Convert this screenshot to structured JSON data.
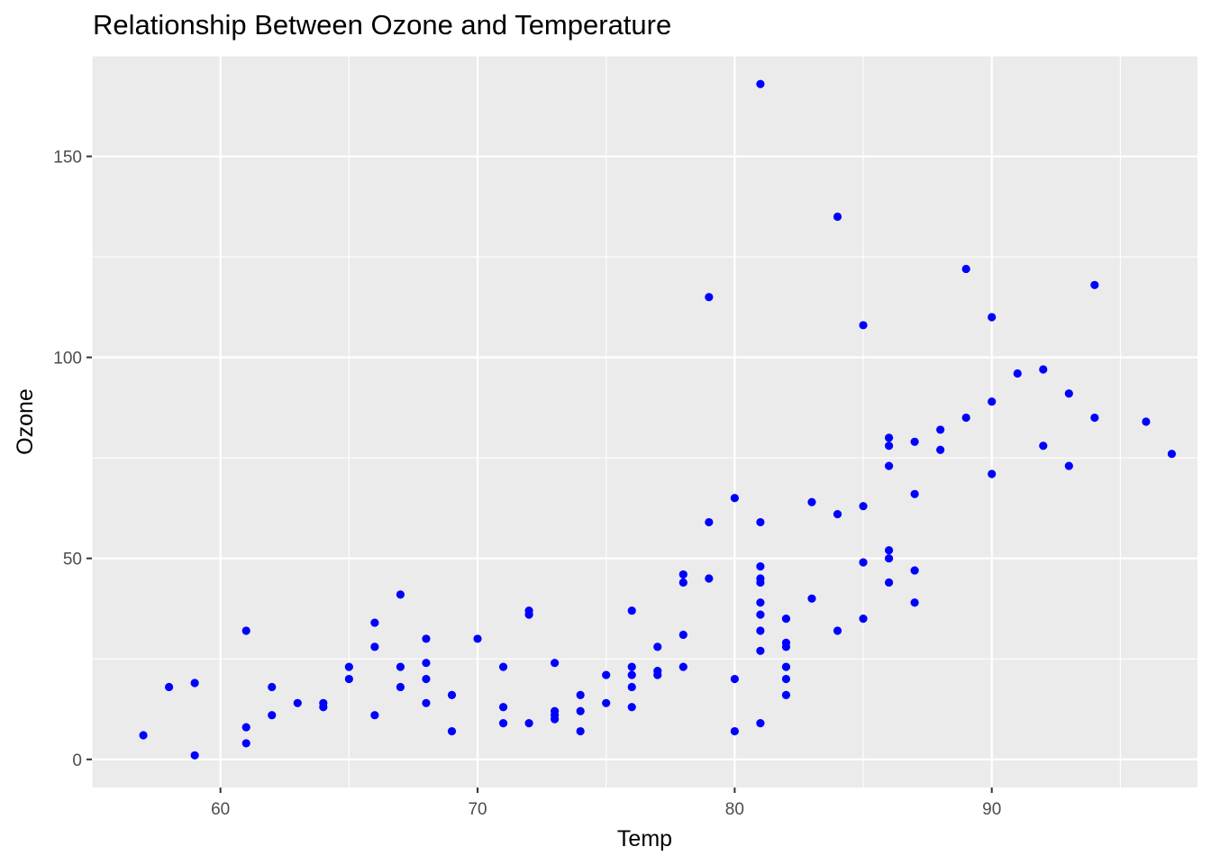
{
  "chart_data": {
    "type": "scatter",
    "title": "Relationship Between Ozone and Temperature",
    "xlabel": "Temp",
    "ylabel": "Ozone",
    "xlim": [
      55,
      98
    ],
    "ylim": [
      -7,
      175
    ],
    "x_ticks": [
      60,
      70,
      80,
      90
    ],
    "x_tick_labels": [
      "60",
      "70",
      "80",
      "90"
    ],
    "y_ticks": [
      0,
      50,
      100,
      150
    ],
    "y_tick_labels": [
      "0",
      "50",
      "100",
      "150"
    ],
    "grid": true,
    "point_color": "#0000ff",
    "panel_background": "#ebebeb",
    "gridline_color": "#ffffff",
    "series": [
      {
        "points": [
          [
            57,
            6
          ],
          [
            58,
            18
          ],
          [
            59,
            1
          ],
          [
            59,
            19
          ],
          [
            61,
            4
          ],
          [
            61,
            8
          ],
          [
            61,
            32
          ],
          [
            62,
            11
          ],
          [
            62,
            18
          ],
          [
            63,
            14
          ],
          [
            64,
            13
          ],
          [
            64,
            14
          ],
          [
            65,
            20
          ],
          [
            65,
            23
          ],
          [
            66,
            11
          ],
          [
            66,
            28
          ],
          [
            66,
            34
          ],
          [
            67,
            18
          ],
          [
            67,
            23
          ],
          [
            67,
            41
          ],
          [
            68,
            14
          ],
          [
            68,
            20
          ],
          [
            68,
            24
          ],
          [
            68,
            30
          ],
          [
            69,
            7
          ],
          [
            69,
            16
          ],
          [
            70,
            30
          ],
          [
            71,
            9
          ],
          [
            71,
            13
          ],
          [
            71,
            23
          ],
          [
            72,
            9
          ],
          [
            72,
            36
          ],
          [
            72,
            37
          ],
          [
            73,
            10
          ],
          [
            73,
            11
          ],
          [
            73,
            12
          ],
          [
            73,
            24
          ],
          [
            74,
            7
          ],
          [
            74,
            12
          ],
          [
            74,
            16
          ],
          [
            75,
            14
          ],
          [
            75,
            21
          ],
          [
            76,
            13
          ],
          [
            76,
            18
          ],
          [
            76,
            21
          ],
          [
            76,
            23
          ],
          [
            76,
            37
          ],
          [
            77,
            21
          ],
          [
            77,
            22
          ],
          [
            77,
            28
          ],
          [
            78,
            23
          ],
          [
            78,
            31
          ],
          [
            78,
            44
          ],
          [
            78,
            46
          ],
          [
            79,
            45
          ],
          [
            79,
            59
          ],
          [
            79,
            115
          ],
          [
            80,
            7
          ],
          [
            80,
            20
          ],
          [
            80,
            65
          ],
          [
            81,
            9
          ],
          [
            81,
            27
          ],
          [
            81,
            32
          ],
          [
            81,
            36
          ],
          [
            81,
            39
          ],
          [
            81,
            44
          ],
          [
            81,
            45
          ],
          [
            81,
            48
          ],
          [
            81,
            59
          ],
          [
            81,
            168
          ],
          [
            82,
            16
          ],
          [
            82,
            20
          ],
          [
            82,
            23
          ],
          [
            82,
            28
          ],
          [
            82,
            29
          ],
          [
            82,
            35
          ],
          [
            83,
            40
          ],
          [
            83,
            64
          ],
          [
            84,
            32
          ],
          [
            84,
            61
          ],
          [
            84,
            135
          ],
          [
            85,
            35
          ],
          [
            85,
            49
          ],
          [
            85,
            63
          ],
          [
            85,
            108
          ],
          [
            86,
            44
          ],
          [
            86,
            50
          ],
          [
            86,
            52
          ],
          [
            86,
            73
          ],
          [
            86,
            78
          ],
          [
            86,
            80
          ],
          [
            87,
            39
          ],
          [
            87,
            47
          ],
          [
            87,
            66
          ],
          [
            87,
            79
          ],
          [
            88,
            77
          ],
          [
            88,
            82
          ],
          [
            89,
            85
          ],
          [
            89,
            122
          ],
          [
            90,
            71
          ],
          [
            90,
            89
          ],
          [
            90,
            110
          ],
          [
            91,
            96
          ],
          [
            92,
            78
          ],
          [
            92,
            97
          ],
          [
            93,
            73
          ],
          [
            93,
            91
          ],
          [
            94,
            85
          ],
          [
            94,
            118
          ],
          [
            96,
            84
          ],
          [
            97,
            76
          ]
        ]
      }
    ]
  }
}
